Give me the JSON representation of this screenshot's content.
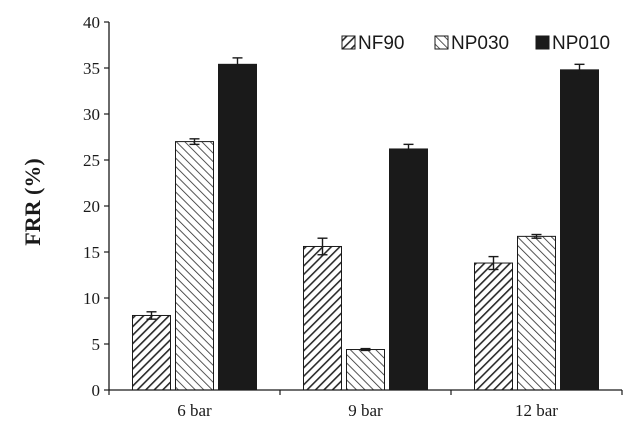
{
  "chart_data": {
    "type": "bar",
    "categories": [
      "6 bar",
      "9 bar",
      "12 bar"
    ],
    "series": [
      {
        "name": "NF90",
        "pattern": "hatch-fine",
        "values": [
          8.1,
          15.6,
          13.8
        ],
        "errors": [
          0.4,
          0.9,
          0.7
        ]
      },
      {
        "name": "NP030",
        "pattern": "hatch-coarse",
        "values": [
          27.0,
          4.4,
          16.7
        ],
        "errors": [
          0.3,
          0.1,
          0.2
        ]
      },
      {
        "name": "NP010",
        "pattern": "solid",
        "values": [
          35.4,
          26.2,
          34.8
        ],
        "errors": [
          0.7,
          0.5,
          0.6
        ]
      }
    ],
    "xlabel": "",
    "ylabel": "FRR (%)",
    "ylim": [
      0,
      40
    ],
    "yticks": [
      "0",
      "5",
      "10",
      "15",
      "20",
      "25",
      "30",
      "35",
      "40"
    ],
    "legend_position": "top-right",
    "grid": false,
    "colors": {
      "bar_fill": "#1a1a1a",
      "hatch": "#2a2a2a",
      "axis": "#1a1a1a"
    }
  }
}
